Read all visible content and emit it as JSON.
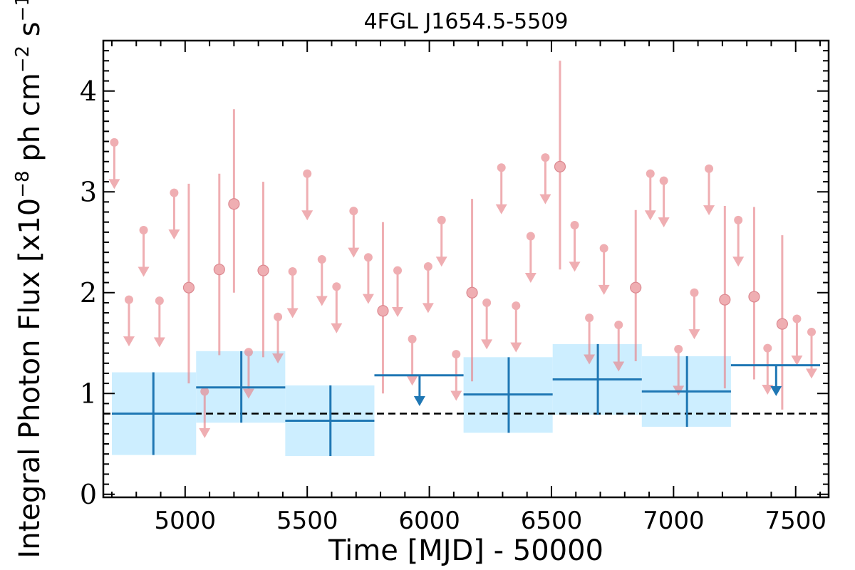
{
  "chart_data": {
    "type": "scatter",
    "title": "4FGL J1654.5-5509",
    "xlabel": "Time [MJD] - 50000",
    "ylabel_main": "Integral Photon Flux [x10",
    "ylabel_exp1": "−8",
    "ylabel_mid": " ph cm",
    "ylabel_exp2": "−2",
    "ylabel_mid2": " s",
    "ylabel_exp3": "−1",
    "ylabel_end": "]",
    "xlim": [
      4665,
      7635
    ],
    "ylim": [
      -0.03,
      4.5
    ],
    "x_ticks": [
      5000,
      5500,
      6000,
      6500,
      7000,
      7500
    ],
    "y_ticks": [
      0,
      1,
      2,
      3,
      4
    ],
    "reference_flux": 0.8,
    "colors": {
      "short_bin": "#e8838a",
      "long_bin": "#1f77b4",
      "band": "#cdeeff",
      "reference": "#000000"
    },
    "short_bin_detections": [
      {
        "x": 5015,
        "y": 2.05,
        "lo": 1.1,
        "hi": 3.08
      },
      {
        "x": 5140,
        "y": 2.23,
        "lo": 1.38,
        "hi": 3.18
      },
      {
        "x": 5200,
        "y": 2.88,
        "lo": 2.0,
        "hi": 3.82
      },
      {
        "x": 5320,
        "y": 2.22,
        "lo": 1.36,
        "hi": 3.1
      },
      {
        "x": 5810,
        "y": 1.82,
        "lo": 1.0,
        "hi": 2.7
      },
      {
        "x": 6175,
        "y": 2.0,
        "lo": 1.12,
        "hi": 2.93
      },
      {
        "x": 6535,
        "y": 3.25,
        "lo": 2.23,
        "hi": 4.3
      },
      {
        "x": 6845,
        "y": 2.05,
        "lo": 1.32,
        "hi": 2.82
      },
      {
        "x": 7210,
        "y": 1.93,
        "lo": 1.05,
        "hi": 2.86
      },
      {
        "x": 7330,
        "y": 1.96,
        "lo": 1.14,
        "hi": 2.85
      },
      {
        "x": 7445,
        "y": 1.69,
        "lo": 0.84,
        "hi": 2.57
      }
    ],
    "short_bin_upper_limits": [
      {
        "x": 4710,
        "y": 3.49
      },
      {
        "x": 4770,
        "y": 1.93
      },
      {
        "x": 4830,
        "y": 2.62
      },
      {
        "x": 4895,
        "y": 1.92
      },
      {
        "x": 4955,
        "y": 2.99
      },
      {
        "x": 5080,
        "y": 1.02
      },
      {
        "x": 5260,
        "y": 1.41
      },
      {
        "x": 5380,
        "y": 1.76
      },
      {
        "x": 5440,
        "y": 2.21
      },
      {
        "x": 5500,
        "y": 3.18
      },
      {
        "x": 5560,
        "y": 2.33
      },
      {
        "x": 5620,
        "y": 2.06
      },
      {
        "x": 5690,
        "y": 2.81
      },
      {
        "x": 5750,
        "y": 2.35
      },
      {
        "x": 5870,
        "y": 2.22
      },
      {
        "x": 5930,
        "y": 1.54
      },
      {
        "x": 5995,
        "y": 2.26
      },
      {
        "x": 6050,
        "y": 2.72
      },
      {
        "x": 6110,
        "y": 1.39
      },
      {
        "x": 6235,
        "y": 1.9
      },
      {
        "x": 6295,
        "y": 3.24
      },
      {
        "x": 6355,
        "y": 1.87
      },
      {
        "x": 6415,
        "y": 2.56
      },
      {
        "x": 6475,
        "y": 3.34
      },
      {
        "x": 6595,
        "y": 2.67
      },
      {
        "x": 6655,
        "y": 1.75
      },
      {
        "x": 6715,
        "y": 2.44
      },
      {
        "x": 6775,
        "y": 1.68
      },
      {
        "x": 6905,
        "y": 3.18
      },
      {
        "x": 6960,
        "y": 3.11
      },
      {
        "x": 7020,
        "y": 1.44
      },
      {
        "x": 7085,
        "y": 2.0
      },
      {
        "x": 7145,
        "y": 3.23
      },
      {
        "x": 7265,
        "y": 2.72
      },
      {
        "x": 7385,
        "y": 1.45
      },
      {
        "x": 7505,
        "y": 1.74
      },
      {
        "x": 7565,
        "y": 1.61
      }
    ],
    "long_bin_detections": [
      {
        "x0": 4700,
        "x1": 5045,
        "xc": 4870,
        "y": 0.8,
        "lo": 0.39,
        "hi": 1.21
      },
      {
        "x0": 5045,
        "x1": 5410,
        "xc": 5230,
        "y": 1.06,
        "lo": 0.71,
        "hi": 1.42
      },
      {
        "x0": 5410,
        "x1": 5775,
        "xc": 5595,
        "y": 0.73,
        "lo": 0.38,
        "hi": 1.08
      },
      {
        "x0": 6140,
        "x1": 6505,
        "xc": 6325,
        "y": 0.99,
        "lo": 0.61,
        "hi": 1.36
      },
      {
        "x0": 6505,
        "x1": 6870,
        "xc": 6690,
        "y": 1.14,
        "lo": 0.79,
        "hi": 1.49
      },
      {
        "x0": 6870,
        "x1": 7235,
        "xc": 7055,
        "y": 1.02,
        "lo": 0.67,
        "hi": 1.37
      }
    ],
    "long_bin_upper_limits": [
      {
        "x0": 5775,
        "x1": 6140,
        "xc": 5960,
        "y": 1.18
      },
      {
        "x0": 7235,
        "x1": 7600,
        "xc": 7420,
        "y": 1.28
      }
    ]
  }
}
